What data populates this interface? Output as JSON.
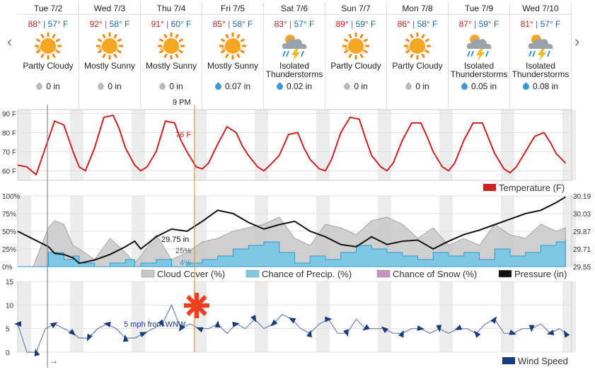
{
  "days": [
    {
      "label": "Tue 7/2",
      "hi": "88°",
      "lo": "57° F",
      "cond": "Partly Cloudy",
      "precip": "0 in",
      "icon": "sun-icon"
    },
    {
      "label": "Wed 7/3",
      "hi": "92°",
      "lo": "58° F",
      "cond": "Mostly Sunny",
      "precip": "0 in",
      "icon": "sun-icon"
    },
    {
      "label": "Thu 7/4",
      "hi": "91°",
      "lo": "60° F",
      "cond": "Mostly Sunny",
      "precip": "0 in",
      "icon": "sun-icon"
    },
    {
      "label": "Fri 7/5",
      "hi": "85°",
      "lo": "58° F",
      "cond": "Mostly Sunny",
      "precip": "0.07 in",
      "icon": "sun-icon"
    },
    {
      "label": "Sat 7/6",
      "hi": "83°",
      "lo": "57° F",
      "cond": "Isolated Thunderstorms",
      "precip": "0.02 in",
      "icon": "thunderstorm-icon"
    },
    {
      "label": "Sun 7/7",
      "hi": "89°",
      "lo": "59° F",
      "cond": "Partly Cloudy",
      "precip": "0 in",
      "icon": "sun-icon"
    },
    {
      "label": "Mon 7/8",
      "hi": "86°",
      "lo": "58° F",
      "cond": "Partly Cloudy",
      "precip": "0 in",
      "icon": "sun-icon"
    },
    {
      "label": "Tue 7/9",
      "hi": "87°",
      "lo": "59° F",
      "cond": "Isolated Thunderstorms",
      "precip": "0.05 in",
      "icon": "thunderstorm-icon"
    },
    {
      "label": "Wed 7/10",
      "hi": "81°",
      "lo": "57° F",
      "cond": "Isolated Thunderstorms",
      "precip": "0.08 in",
      "icon": "thunderstorm-icon"
    }
  ],
  "nav": {
    "prev": "‹",
    "next": "›"
  },
  "cursor": {
    "time_label": "9 PM",
    "temp_label": "76 F",
    "pressure_label": "29.75 in",
    "cloud_label": "25%",
    "precip_label": "4%",
    "wind_label": "5 mph from WNW"
  },
  "now_arrow": "→",
  "colors": {
    "temperature": "#cc2222",
    "cloud": "#c8c8c8",
    "precip": "#7ec8e3",
    "snow": "#c990c0",
    "pressure": "#111111",
    "wind": "#1a3a80",
    "cursor": "#e88a2e"
  },
  "chart_data": [
    {
      "type": "line",
      "name": "temperature",
      "ylim": [
        55,
        92
      ],
      "yticks": [
        "90 F",
        "80 F",
        "70 F",
        "60 F"
      ],
      "ytick_values": [
        90,
        80,
        70,
        60
      ],
      "legend": [
        {
          "label": "Temperature (F)",
          "color": "#cc2222"
        }
      ],
      "x_days": [
        0,
        0.15,
        0.3,
        0.45,
        0.6,
        0.75,
        0.9,
        1.0,
        1.1,
        1.25,
        1.4,
        1.55,
        1.65,
        1.75,
        1.9,
        2.0,
        2.1,
        2.25,
        2.4,
        2.55,
        2.65,
        2.75,
        2.9,
        3.0,
        3.1,
        3.25,
        3.4,
        3.55,
        3.65,
        3.75,
        3.9,
        4.0,
        4.1,
        4.25,
        4.4,
        4.55,
        4.65,
        4.75,
        4.9,
        5.0,
        5.1,
        5.25,
        5.4,
        5.55,
        5.65,
        5.75,
        5.9,
        6.0,
        6.1,
        6.25,
        6.4,
        6.55,
        6.65,
        6.75,
        6.9,
        7.0,
        7.1,
        7.25,
        7.4,
        7.55,
        7.65,
        7.75,
        7.9,
        8.0,
        8.1,
        8.25,
        8.4,
        8.55,
        8.65,
        8.75,
        8.9
      ],
      "values": [
        63,
        62,
        58,
        72,
        86,
        84,
        70,
        62,
        60,
        72,
        88,
        89,
        82,
        72,
        63,
        60,
        62,
        70,
        86,
        85,
        76,
        70,
        62,
        61,
        64,
        74,
        83,
        80,
        73,
        68,
        62,
        60,
        63,
        68,
        79,
        80,
        72,
        66,
        61,
        60,
        66,
        80,
        88,
        87,
        77,
        68,
        62,
        60,
        64,
        76,
        85,
        85,
        78,
        70,
        62,
        60,
        64,
        76,
        85,
        85,
        77,
        69,
        61,
        59,
        62,
        70,
        78,
        80,
        75,
        69,
        64
      ]
    },
    {
      "type": "area",
      "name": "sky-and-pressure",
      "ylim": [
        0,
        100
      ],
      "yticks": [
        "100%",
        "75%",
        "50%",
        "25%",
        "0%"
      ],
      "ytick_values": [
        100,
        75,
        50,
        25,
        0
      ],
      "pressure_ticks": [
        "30.19",
        "30.03",
        "29.87",
        "29.71",
        "29.55"
      ],
      "pressure_tick_values": [
        30.19,
        30.03,
        29.87,
        29.71,
        29.55
      ],
      "pressure_lim": [
        29.55,
        30.19
      ],
      "legend": [
        {
          "label": "Cloud Cover (%)",
          "color": "#c8c8c8"
        },
        {
          "label": "Chance of Precip. (%)",
          "color": "#7ec8e3"
        },
        {
          "label": "Chance of Snow (%)",
          "color": "#c990c0"
        },
        {
          "label": "Pressure (in)",
          "color": "#111111"
        }
      ],
      "x_days": [
        0,
        0.25,
        0.5,
        0.6,
        0.75,
        0.9,
        1.0,
        1.25,
        1.5,
        1.75,
        1.9,
        2.0,
        2.25,
        2.5,
        2.75,
        3.0,
        3.25,
        3.5,
        3.75,
        4.0,
        4.25,
        4.5,
        4.75,
        5.0,
        5.25,
        5.5,
        5.75,
        6.0,
        6.25,
        6.5,
        6.75,
        7.0,
        7.25,
        7.5,
        7.75,
        8.0,
        8.25,
        8.5,
        8.75,
        8.9
      ],
      "cloud": [
        0,
        0,
        55,
        65,
        60,
        30,
        25,
        10,
        40,
        20,
        5,
        15,
        45,
        10,
        20,
        35,
        40,
        50,
        55,
        60,
        70,
        40,
        30,
        60,
        55,
        45,
        65,
        70,
        60,
        40,
        55,
        30,
        40,
        30,
        60,
        45,
        40,
        60,
        50,
        55
      ],
      "precip": [
        0,
        0,
        20,
        20,
        10,
        15,
        5,
        0,
        5,
        10,
        0,
        5,
        10,
        0,
        5,
        10,
        15,
        25,
        30,
        35,
        20,
        5,
        15,
        10,
        20,
        30,
        25,
        20,
        15,
        10,
        20,
        15,
        20,
        10,
        25,
        15,
        20,
        30,
        35,
        38
      ],
      "pressure": [
        29.87,
        29.8,
        29.73,
        29.67,
        29.66,
        29.63,
        29.58,
        29.61,
        29.66,
        29.73,
        29.78,
        29.71,
        29.82,
        29.89,
        29.87,
        29.96,
        30.06,
        30.03,
        29.95,
        29.89,
        29.93,
        29.96,
        29.87,
        29.82,
        29.75,
        29.73,
        29.82,
        29.75,
        29.78,
        29.79,
        29.71,
        29.78,
        29.84,
        29.88,
        29.93,
        29.98,
        30.03,
        30.06,
        30.13,
        30.18
      ]
    },
    {
      "type": "line",
      "name": "wind",
      "ylim": [
        0,
        15
      ],
      "yticks": [
        "15",
        "10",
        "5",
        "0"
      ],
      "ytick_values": [
        15,
        10,
        5,
        0
      ],
      "legend": [
        {
          "label": "Wind Speed",
          "color": "#1a3a80"
        }
      ],
      "x_days": [
        0,
        0.15,
        0.3,
        0.45,
        0.6,
        0.75,
        0.9,
        1.0,
        1.15,
        1.3,
        1.45,
        1.6,
        1.75,
        1.9,
        2.05,
        2.2,
        2.35,
        2.5,
        2.65,
        2.8,
        2.95,
        3.1,
        3.25,
        3.4,
        3.55,
        3.7,
        3.85,
        4.0,
        4.15,
        4.3,
        4.45,
        4.6,
        4.75,
        4.9,
        5.05,
        5.2,
        5.35,
        5.5,
        5.65,
        5.8,
        5.95,
        6.1,
        6.25,
        6.4,
        6.55,
        6.7,
        6.85,
        7.0,
        7.15,
        7.3,
        7.45,
        7.6,
        7.75,
        7.9,
        8.05,
        8.2,
        8.35,
        8.5,
        8.65,
        8.8,
        8.9
      ],
      "values": [
        6,
        0,
        0,
        5,
        6,
        5,
        4,
        3,
        3,
        5,
        6,
        5,
        3,
        3,
        4,
        5,
        6,
        10,
        5,
        6,
        5,
        5,
        6,
        4,
        6,
        5,
        7,
        5,
        6,
        8,
        7,
        5,
        4,
        6,
        7,
        4,
        4,
        7,
        5,
        5,
        5,
        4,
        4,
        5,
        5,
        4,
        5,
        4,
        5,
        5,
        4,
        6,
        7,
        4,
        4,
        5,
        5,
        6,
        4,
        5,
        4
      ]
    }
  ]
}
